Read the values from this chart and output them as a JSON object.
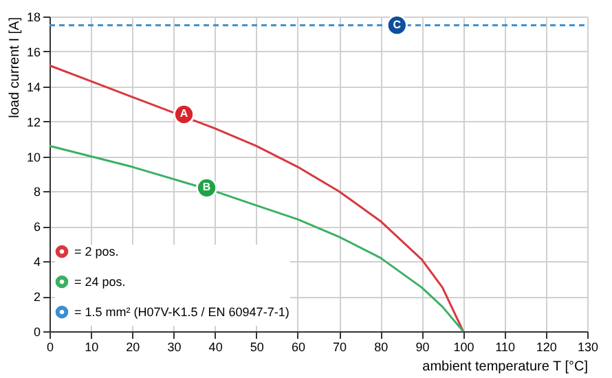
{
  "chart_data": {
    "type": "line",
    "xlabel": "ambient temperature T [°C]",
    "ylabel": "load current I [A]",
    "xlim": [
      0,
      130
    ],
    "xticks": [
      0,
      10,
      20,
      30,
      40,
      50,
      60,
      70,
      80,
      90,
      100,
      110,
      120,
      130
    ],
    "ylim": [
      0,
      18
    ],
    "yticks": [
      0,
      2,
      4,
      6,
      8,
      10,
      12,
      14,
      16,
      18
    ],
    "grid": true,
    "legend": "bottom left",
    "marker": "none",
    "series": [
      {
        "name": "= 2 pos.",
        "color": "#d9383f",
        "line_style": "solid",
        "x": [
          0,
          10,
          20,
          30,
          40,
          50,
          60,
          70,
          80,
          90,
          95,
          100
        ],
        "values": [
          15.2,
          14.3,
          13.4,
          12.5,
          11.6,
          10.6,
          9.4,
          8.0,
          6.3,
          4.1,
          2.5,
          0
        ]
      },
      {
        "name": "= 24 pos.",
        "color": "#3cb064",
        "line_style": "solid",
        "x": [
          0,
          10,
          20,
          30,
          40,
          50,
          60,
          70,
          80,
          90,
          95,
          100
        ],
        "values": [
          10.6,
          10.0,
          9.4,
          8.7,
          8.0,
          7.2,
          6.4,
          5.4,
          4.2,
          2.5,
          1.4,
          0
        ]
      },
      {
        "name": "= 1.5 mm² (H07V-K1.5 / EN 60947-7-1)",
        "color": "#3a8fd0",
        "line_style": "dashed",
        "x": [
          0,
          130
        ],
        "values": [
          17.5,
          17.5
        ]
      }
    ],
    "annotations": [
      {
        "text": "A",
        "x": 32.5,
        "y": 12.4
      },
      {
        "text": "B",
        "x": 38,
        "y": 8.2
      },
      {
        "text": "C",
        "x": 84,
        "y": 17.5
      }
    ]
  }
}
